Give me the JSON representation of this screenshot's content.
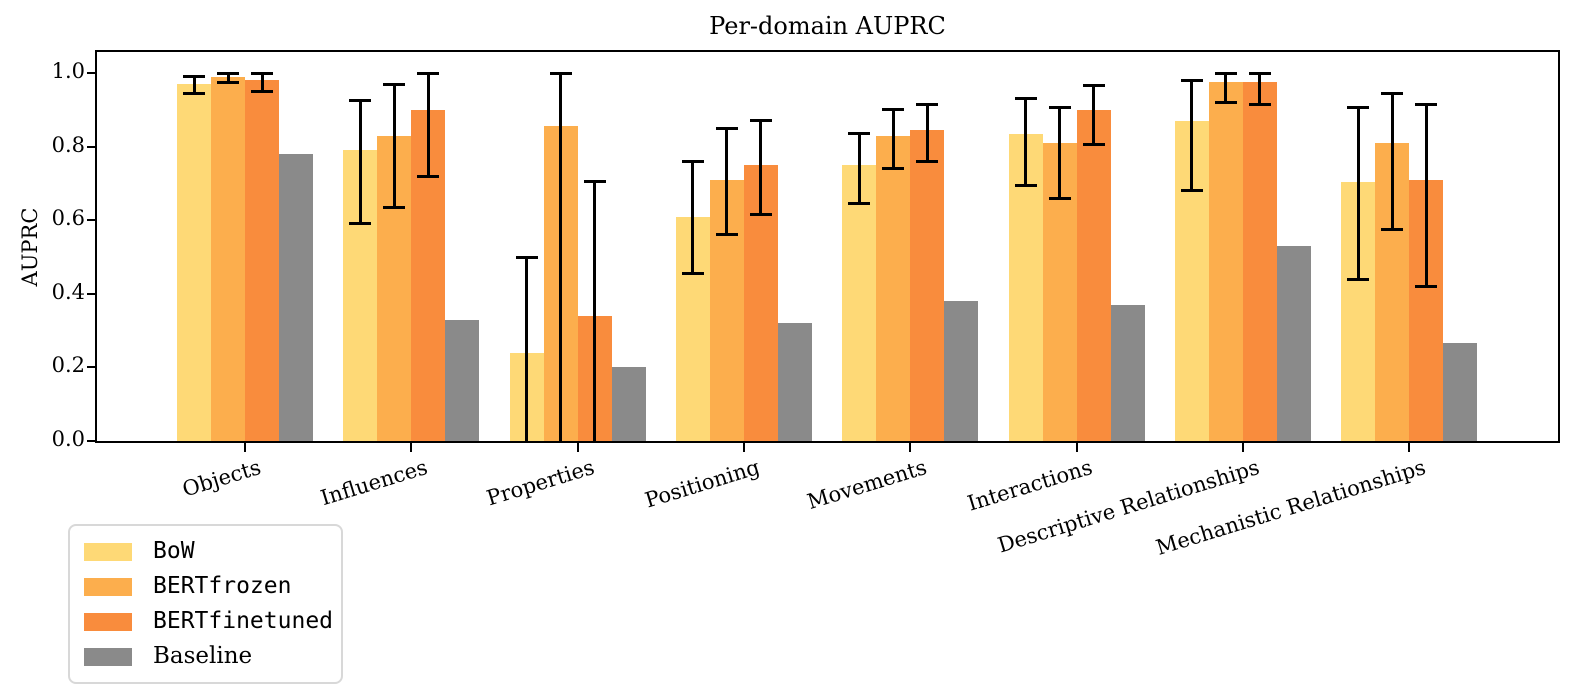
{
  "figure": {
    "title": "Per-domain AUPRC",
    "ylabel": "AUPRC",
    "background_color": "#ffffff",
    "axis_color": "#000000",
    "error_bar_color": "#000000"
  },
  "chart_data": {
    "type": "bar",
    "title": "Per-domain AUPRC",
    "xlabel": "",
    "ylabel": "AUPRC",
    "ylim": [
      0.0,
      1.057
    ],
    "yticks": [
      "0.0",
      "0.2",
      "0.4",
      "0.6",
      "0.8",
      "1.0"
    ],
    "ytick_values": [
      0.0,
      0.2,
      0.4,
      0.6,
      0.8,
      1.0
    ],
    "grid": false,
    "legend_position": "lower left, outside below axes",
    "xtick_label_rotation_deg": 17,
    "categories": [
      "Objects",
      "Influences",
      "Properties",
      "Positioning",
      "Movements",
      "Interactions",
      "Descriptive Relationships",
      "Mechanistic Relationships"
    ],
    "series": [
      {
        "name": "BoW",
        "color": "#FED976",
        "mono_label": true,
        "has_error_bars": true,
        "values": [
          0.97,
          0.79,
          0.24,
          0.61,
          0.75,
          0.835,
          0.87,
          0.705
        ],
        "err_low": [
          0.945,
          0.59,
          0.0,
          0.455,
          0.645,
          0.695,
          0.68,
          0.44
        ],
        "err_high": [
          0.99,
          0.925,
          0.5,
          0.76,
          0.835,
          0.93,
          0.98,
          0.905
        ]
      },
      {
        "name": "BERTfrozen",
        "color": "#FCAE4D",
        "mono_label": true,
        "has_error_bars": true,
        "values": [
          0.99,
          0.83,
          0.855,
          0.71,
          0.83,
          0.81,
          0.975,
          0.81
        ],
        "err_low": [
          0.975,
          0.635,
          0.0,
          0.56,
          0.74,
          0.66,
          0.92,
          0.575
        ],
        "err_high": [
          1.0,
          0.97,
          1.0,
          0.85,
          0.9,
          0.905,
          1.0,
          0.945
        ]
      },
      {
        "name": "BERTfinetuned",
        "color": "#F98C3D",
        "mono_label": true,
        "has_error_bars": true,
        "values": [
          0.98,
          0.9,
          0.34,
          0.75,
          0.845,
          0.9,
          0.975,
          0.71
        ],
        "err_low": [
          0.95,
          0.72,
          0.0,
          0.615,
          0.76,
          0.805,
          0.915,
          0.42
        ],
        "err_high": [
          1.0,
          1.0,
          0.705,
          0.87,
          0.915,
          0.965,
          1.0,
          0.915
        ]
      },
      {
        "name": "Baseline",
        "color": "#8A8A8A",
        "mono_label": false,
        "has_error_bars": false,
        "values": [
          0.78,
          0.33,
          0.2,
          0.32,
          0.38,
          0.37,
          0.53,
          0.265
        ],
        "err_low": null,
        "err_high": null
      }
    ]
  }
}
